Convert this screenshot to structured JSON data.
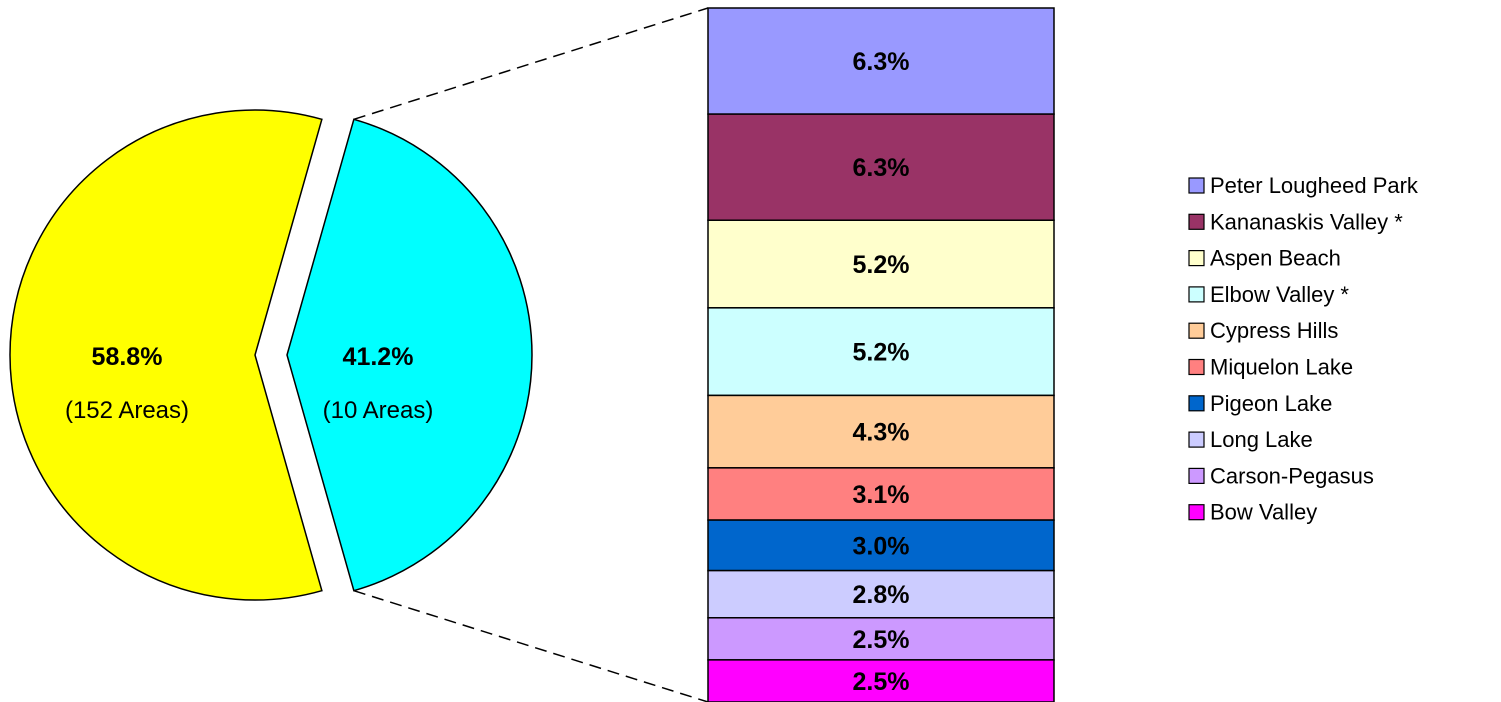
{
  "chart_data": {
    "type": "pie",
    "pie": {
      "slices": [
        {
          "label": "(152 Areas)",
          "value": 58.8,
          "value_label": "58.8%",
          "color": "#FFFF00"
        },
        {
          "label": "(10 Areas)",
          "value": 41.2,
          "value_label": "41.2%",
          "color": "#00FFFF",
          "exploded": true
        }
      ]
    },
    "stacked_bar": {
      "type": "bar",
      "stacked": true,
      "note": "breakdown of the 41.2% slice",
      "series": [
        {
          "name": "Peter Lougheed Park",
          "value": 6.3,
          "value_label": "6.3%",
          "color": "#9999FF"
        },
        {
          "name": "Kananaskis Valley *",
          "value": 6.3,
          "value_label": "6.3%",
          "color": "#993366"
        },
        {
          "name": "Aspen Beach",
          "value": 5.2,
          "value_label": "5.2%",
          "color": "#FFFFCC"
        },
        {
          "name": "Elbow Valley *",
          "value": 5.2,
          "value_label": "5.2%",
          "color": "#CCFFFF"
        },
        {
          "name": "Cypress Hills",
          "value": 4.3,
          "value_label": "4.3%",
          "color": "#FFCC99"
        },
        {
          "name": "Miquelon Lake",
          "value": 3.1,
          "value_label": "3.1%",
          "color": "#FF8080"
        },
        {
          "name": "Pigeon Lake",
          "value": 3.0,
          "value_label": "3.0%",
          "color": "#0066CC"
        },
        {
          "name": "Long Lake",
          "value": 2.8,
          "value_label": "2.8%",
          "color": "#CCCCFF"
        },
        {
          "name": "Carson-Pegasus",
          "value": 2.5,
          "value_label": "2.5%",
          "color": "#CC99FF"
        },
        {
          "name": "Bow Valley",
          "value": 2.5,
          "value_label": "2.5%",
          "color": "#FF00FF"
        }
      ]
    },
    "legend_position": "right"
  }
}
